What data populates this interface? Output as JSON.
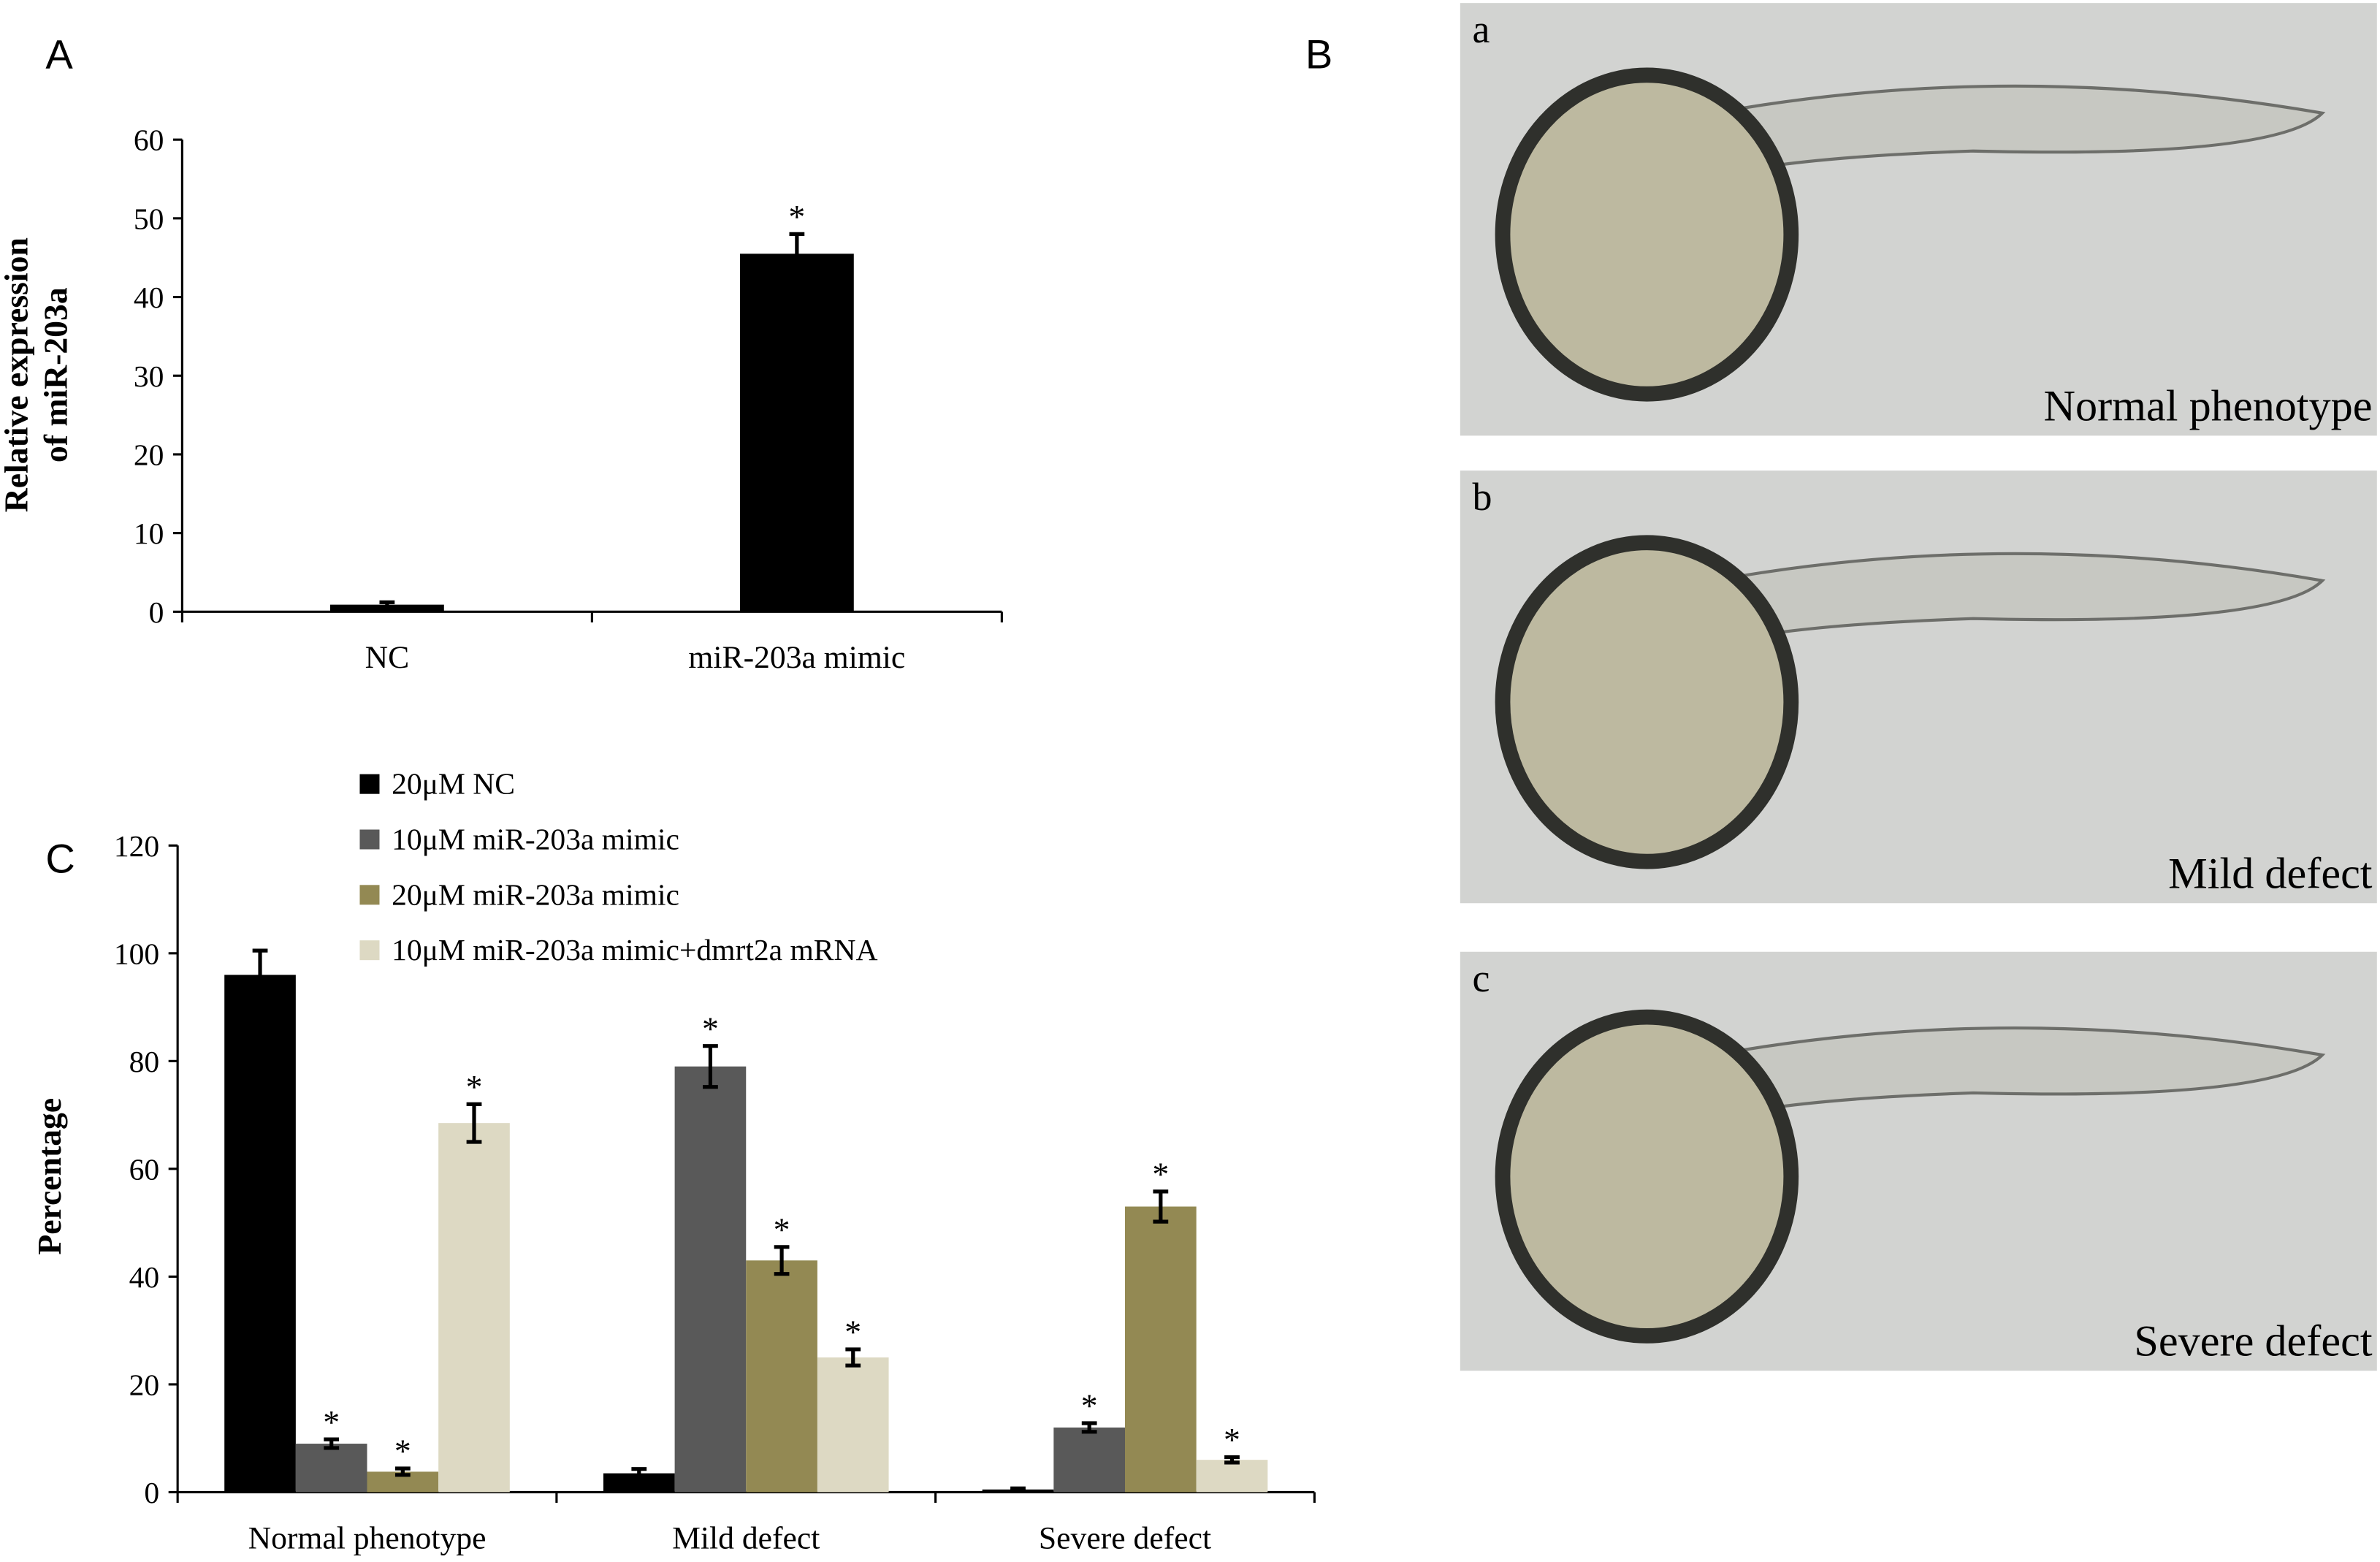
{
  "chart_data": [
    {
      "type": "bar",
      "panel": "A",
      "ylabel": [
        "Relative expression",
        "of miR-203a"
      ],
      "categories": [
        "NC",
        "miR-203a mimic"
      ],
      "values": [
        0.9,
        45.5
      ],
      "errors": [
        0.3,
        2.5
      ],
      "markers": [
        null,
        "*"
      ],
      "color": "#000000",
      "ylim": [
        0,
        60
      ],
      "yticks": [
        0,
        10,
        20,
        30,
        40,
        50,
        60
      ]
    },
    {
      "type": "grouped-bar",
      "panel": "C",
      "ylabel": "Percentage",
      "categories": [
        "Normal phenotype",
        "Mild defect",
        "Severe defect"
      ],
      "series": [
        {
          "name": "20μM NC",
          "color": "#000000",
          "values": [
            96,
            3.5,
            0.5
          ],
          "errors": [
            4.5,
            0.8,
            0.2
          ],
          "markers": [
            null,
            null,
            null
          ]
        },
        {
          "name": "10μM miR-203a mimic",
          "color": "#595959",
          "values": [
            9,
            79,
            12
          ],
          "errors": [
            0.8,
            3.8,
            0.8
          ],
          "markers": [
            "*",
            "*",
            "*"
          ]
        },
        {
          "name": "20μM miR-203a mimic",
          "color": "#938953",
          "values": [
            3.8,
            43,
            53
          ],
          "errors": [
            0.6,
            2.5,
            2.8
          ],
          "markers": [
            "*",
            "*",
            "*"
          ]
        },
        {
          "name": "10μM miR-203a mimic+dmrt2a mRNA",
          "color": "#ddd9c3",
          "values": [
            68.5,
            25,
            6
          ],
          "errors": [
            3.5,
            1.5,
            0.5
          ],
          "markers": [
            "*",
            "*",
            "*"
          ]
        }
      ],
      "legend": "top-left",
      "ylim": [
        0,
        120
      ],
      "yticks": [
        0,
        20,
        40,
        60,
        80,
        100,
        120
      ]
    }
  ],
  "image_panel": {
    "panel": "B",
    "images": [
      {
        "letter": "a",
        "caption": "Normal phenotype"
      },
      {
        "letter": "b",
        "caption": "Mild defect"
      },
      {
        "letter": "c",
        "caption": "Severe defect"
      }
    ]
  }
}
